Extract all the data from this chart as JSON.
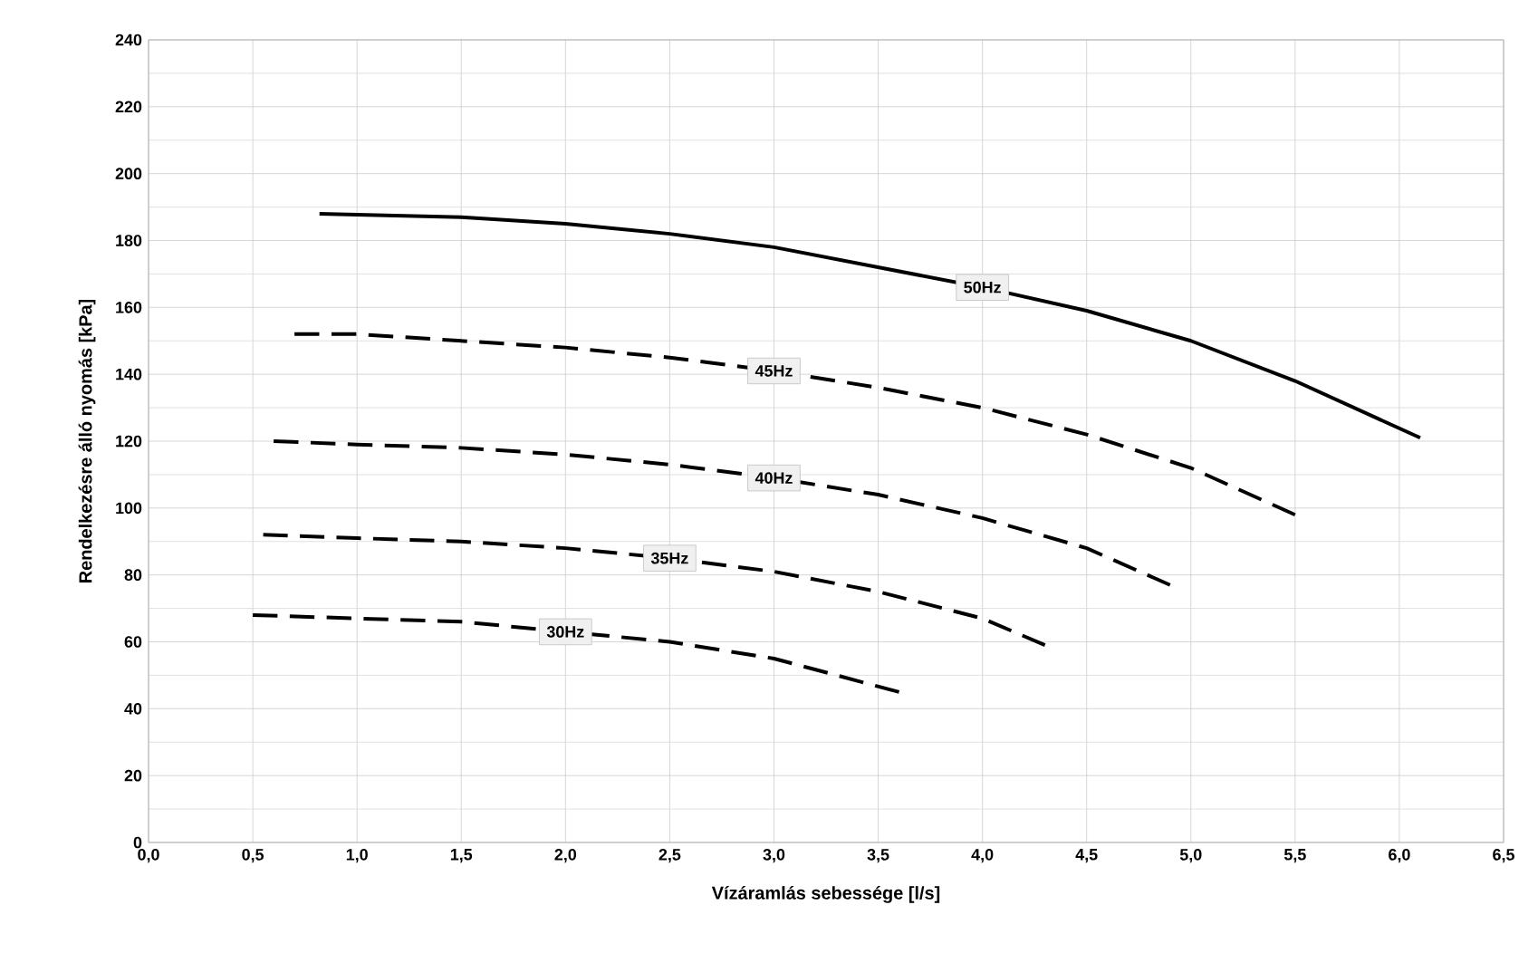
{
  "chart_data": {
    "type": "line",
    "xlabel": "Vízáramlás sebessége [l/s]",
    "ylabel": "Rendelkezésre álló nyomás [kPa]",
    "xlim": [
      0,
      6.5
    ],
    "ylim": [
      0,
      240
    ],
    "xticks": [
      {
        "value": 0,
        "label": "0,0"
      },
      {
        "value": 0.5,
        "label": "0,5"
      },
      {
        "value": 1,
        "label": "1,0"
      },
      {
        "value": 1.5,
        "label": "1,5"
      },
      {
        "value": 2,
        "label": "2,0"
      },
      {
        "value": 2.5,
        "label": "2,5"
      },
      {
        "value": 3,
        "label": "3,0"
      },
      {
        "value": 3.5,
        "label": "3,5"
      },
      {
        "value": 4,
        "label": "4,0"
      },
      {
        "value": 4.5,
        "label": "4,5"
      },
      {
        "value": 5,
        "label": "5,0"
      },
      {
        "value": 5.5,
        "label": "5,5"
      },
      {
        "value": 6,
        "label": "6,0"
      },
      {
        "value": 6.5,
        "label": "6,5"
      }
    ],
    "yticks": [
      0,
      20,
      40,
      60,
      80,
      100,
      120,
      140,
      160,
      180,
      200,
      220,
      240
    ],
    "grid": true,
    "legend": false,
    "series": [
      {
        "name": "50Hz",
        "color": "#000000",
        "line_style": "solid",
        "x": [
          0.82,
          1.5,
          2.0,
          2.5,
          3.0,
          3.5,
          4.0,
          4.5,
          5.0,
          5.5,
          6.1
        ],
        "values": [
          188,
          187,
          185,
          182,
          178,
          172,
          166,
          159,
          150,
          138,
          121
        ]
      },
      {
        "name": "45Hz",
        "color": "#000000",
        "line_style": "dashed",
        "x": [
          0.7,
          1.0,
          1.5,
          2.0,
          2.5,
          3.0,
          3.5,
          4.0,
          4.5,
          5.0,
          5.5
        ],
        "values": [
          152,
          152,
          150,
          148,
          145,
          141,
          136,
          130,
          122,
          112,
          98
        ]
      },
      {
        "name": "40Hz",
        "color": "#000000",
        "line_style": "dashed",
        "x": [
          0.6,
          1.0,
          1.5,
          2.0,
          2.5,
          3.0,
          3.5,
          4.0,
          4.5,
          4.9
        ],
        "values": [
          120,
          119,
          118,
          116,
          113,
          109,
          104,
          97,
          88,
          77
        ]
      },
      {
        "name": "35Hz",
        "color": "#000000",
        "line_style": "dashed",
        "x": [
          0.55,
          1.0,
          1.5,
          2.0,
          2.5,
          3.0,
          3.5,
          4.0,
          4.3
        ],
        "values": [
          92,
          91,
          90,
          88,
          85,
          81,
          75,
          67,
          59
        ]
      },
      {
        "name": "30Hz",
        "color": "#000000",
        "line_style": "dashed",
        "x": [
          0.5,
          1.0,
          1.5,
          2.0,
          2.5,
          3.0,
          3.6
        ],
        "values": [
          68,
          67,
          66,
          63,
          60,
          55,
          45
        ]
      }
    ]
  }
}
